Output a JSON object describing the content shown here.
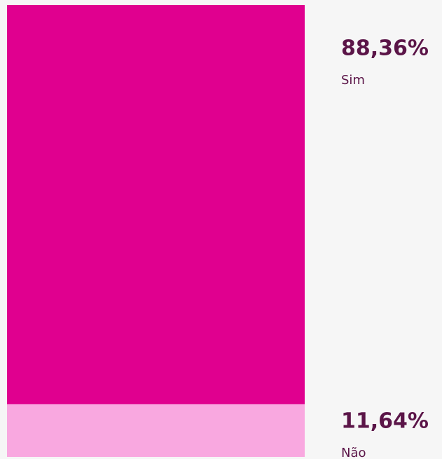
{
  "chart_data": {
    "type": "stacked_bar",
    "series": [
      {
        "name": "Sim",
        "color": "#e0008f",
        "values": [
          88.36
        ],
        "value_labels": [
          "88,36%"
        ]
      },
      {
        "name": "Não",
        "color": "#f9a8e0",
        "values": [
          11.64
        ],
        "value_labels": [
          "11,64%"
        ]
      }
    ]
  }
}
